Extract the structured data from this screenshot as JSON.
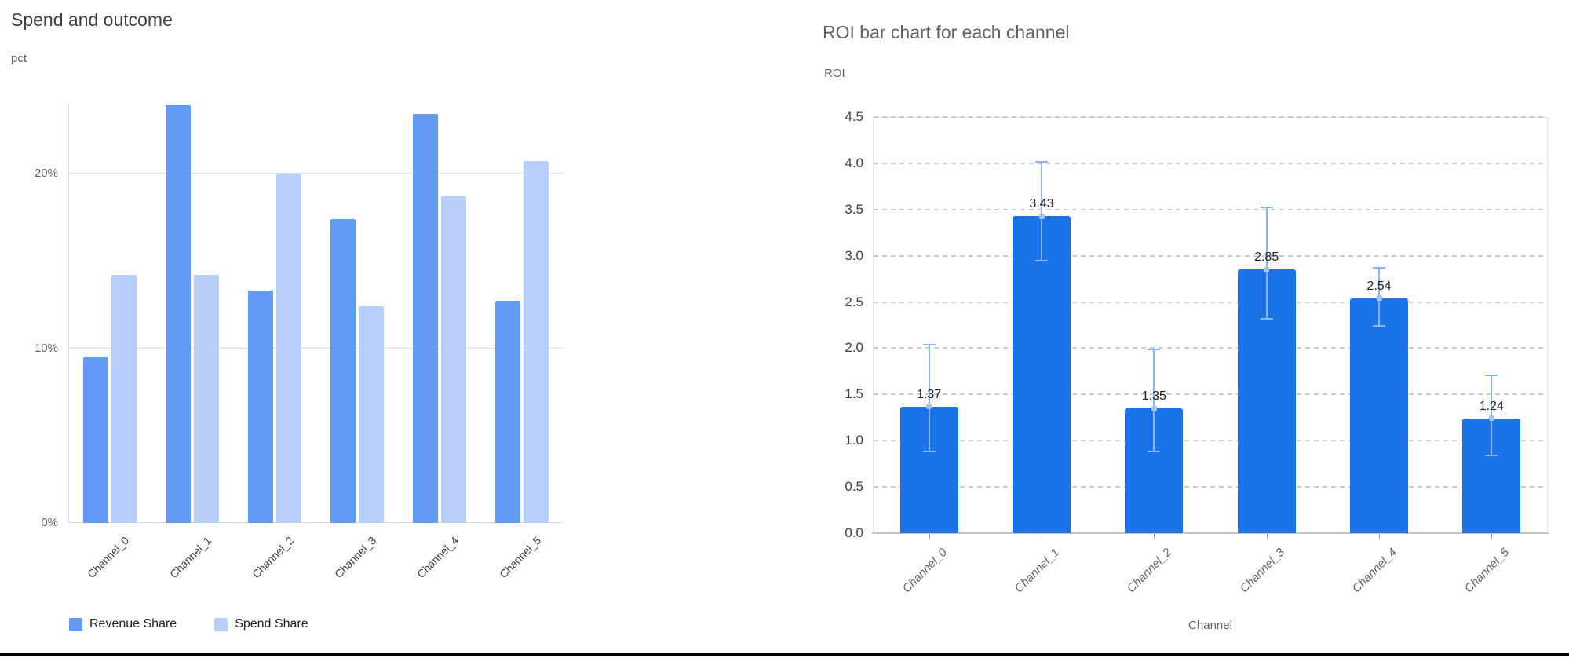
{
  "window": {
    "background": "#ffffff",
    "bottom_border_color": "#000000"
  },
  "chart_data": [
    {
      "id": "spend_outcome",
      "type": "bar",
      "title": "Spend and outcome",
      "ylabel": "pct",
      "xlabel": "",
      "categories": [
        "Channel_0",
        "Channel_1",
        "Channel_2",
        "Channel_3",
        "Channel_4",
        "Channel_5"
      ],
      "series": [
        {
          "name": "Revenue Share",
          "color": "#639af5",
          "values": [
            9.5,
            23.9,
            13.3,
            17.4,
            23.4,
            12.7
          ]
        },
        {
          "name": "Spend Share",
          "color": "#b7cffa",
          "values": [
            14.2,
            14.2,
            20.0,
            12.4,
            18.7,
            20.7
          ]
        }
      ],
      "y_ticks": [
        {
          "v": 0,
          "label": "0%"
        },
        {
          "v": 10,
          "label": "10%"
        },
        {
          "v": 20,
          "label": "20%"
        }
      ],
      "ylim": [
        0,
        24
      ],
      "unit": "%",
      "grid": "solid",
      "legend_position": "bottom"
    },
    {
      "id": "roi_by_channel",
      "type": "bar",
      "title": "ROI bar chart for each channel",
      "ylabel": "ROI",
      "xlabel": "Channel",
      "categories": [
        "Channel_0",
        "Channel_1",
        "Channel_2",
        "Channel_3",
        "Channel_4",
        "Channel_5"
      ],
      "series": [
        {
          "name": "ROI",
          "color": "#1a73e8",
          "values": [
            1.37,
            3.43,
            1.35,
            2.85,
            2.54,
            1.24
          ]
        }
      ],
      "value_labels": [
        "1.37",
        "3.43",
        "1.35",
        "2.85",
        "2.54",
        "1.24"
      ],
      "error_bars": {
        "color": "#8ab4f8",
        "marker_color": "#a3c2f9",
        "low": [
          0.88,
          2.95,
          0.88,
          2.32,
          2.24,
          0.84
        ],
        "high": [
          2.04,
          4.02,
          1.99,
          3.52,
          2.87,
          1.71
        ]
      },
      "y_ticks": [
        {
          "v": 0.0,
          "label": "0.0"
        },
        {
          "v": 0.5,
          "label": "0.5"
        },
        {
          "v": 1.0,
          "label": "1.0"
        },
        {
          "v": 1.5,
          "label": "1.5"
        },
        {
          "v": 2.0,
          "label": "2.0"
        },
        {
          "v": 2.5,
          "label": "2.5"
        },
        {
          "v": 3.0,
          "label": "3.0"
        },
        {
          "v": 3.5,
          "label": "3.5"
        },
        {
          "v": 4.0,
          "label": "4.0"
        },
        {
          "v": 4.5,
          "label": "4.5"
        }
      ],
      "ylim": [
        0,
        4.5
      ],
      "grid": "dashed",
      "legend_position": "none"
    }
  ]
}
